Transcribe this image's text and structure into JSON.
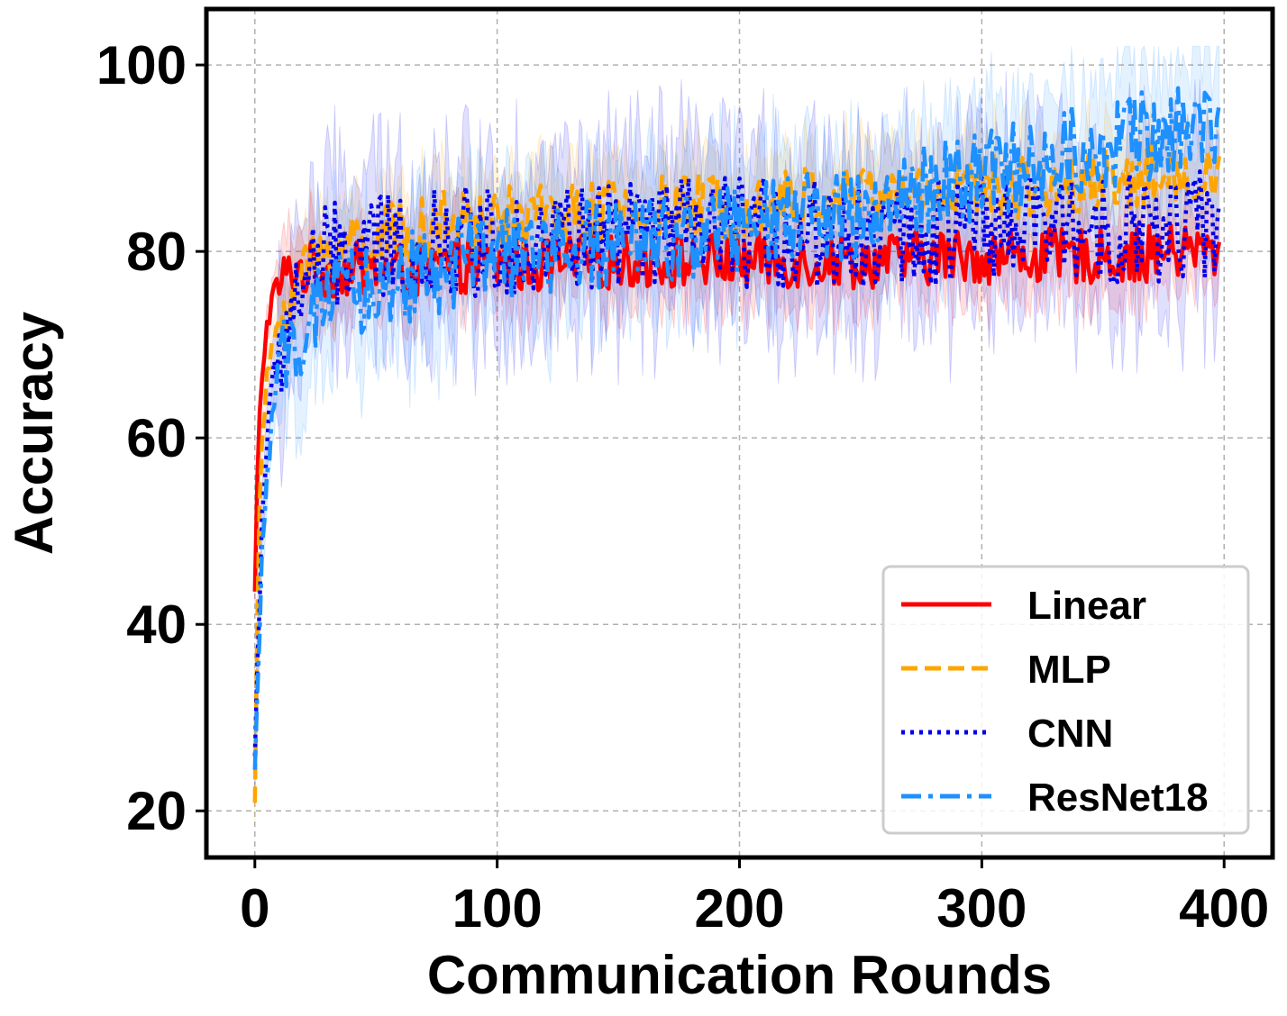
{
  "chart_data": {
    "type": "line",
    "title": "",
    "xlabel": "Communication Rounds",
    "ylabel": "Accuracy",
    "xlim": [
      -20,
      420
    ],
    "ylim": [
      15,
      106
    ],
    "xticks": [
      0,
      100,
      200,
      300,
      400
    ],
    "yticks": [
      20,
      40,
      60,
      80,
      100
    ],
    "grid": true,
    "legend_position": "lower-right",
    "rounds": 400,
    "x": [
      0,
      1,
      2,
      3,
      5,
      8,
      12,
      16,
      20,
      25,
      30,
      35,
      40,
      50,
      60,
      70,
      80,
      90,
      100,
      120,
      140,
      160,
      180,
      200,
      220,
      240,
      260,
      280,
      300,
      320,
      340,
      360,
      380,
      398
    ],
    "series": [
      {
        "name": "Linear",
        "color": "#ff0000",
        "dash": "solid",
        "mean": [
          43,
          55,
          62,
          67,
          72,
          76,
          77,
          78,
          78,
          78,
          78,
          78,
          78,
          78,
          78,
          78,
          78.5,
          78.5,
          78.5,
          78.5,
          79,
          79,
          79,
          79,
          79,
          79,
          79,
          79.5,
          79.5,
          79.5,
          79.5,
          79.5,
          80,
          80
        ],
        "spread": 3.0,
        "band_width": 4.0
      },
      {
        "name": "MLP",
        "color": "#ffa500",
        "dash": "dashed",
        "mean": [
          22,
          40,
          52,
          60,
          66,
          71,
          74,
          76,
          78,
          79,
          80,
          80.5,
          81,
          81.5,
          82,
          82.5,
          83,
          83,
          83.5,
          84,
          84,
          84.5,
          85,
          85,
          85.5,
          86,
          86,
          86.5,
          87,
          87,
          87.5,
          88,
          88,
          89
        ],
        "spread": 3.5,
        "band_width": 4.5
      },
      {
        "name": "CNN",
        "color": "#0000ee",
        "dash": "dotted",
        "mean": [
          26,
          35,
          44,
          52,
          60,
          66,
          71,
          74,
          77,
          78,
          79,
          79.5,
          80,
          80,
          80.5,
          80.5,
          81,
          81,
          81,
          81.5,
          81.5,
          82,
          82,
          82,
          82,
          82,
          82,
          82,
          82.5,
          82.5,
          82.5,
          82.5,
          82.5,
          83
        ],
        "spread": 6.0,
        "band_width": 8.0
      },
      {
        "name": "ResNet18",
        "color": "#1e90ff",
        "dash": "dashdot",
        "mean": [
          23,
          32,
          40,
          48,
          56,
          63,
          68,
          71,
          72,
          73,
          74,
          75,
          75.5,
          76,
          77,
          78,
          78.5,
          79,
          79.5,
          80,
          80.5,
          81,
          82,
          82.5,
          83,
          84,
          85,
          87,
          88,
          89.5,
          91,
          92,
          93,
          94
        ],
        "spread": 5.0,
        "band_width": 7.0
      }
    ]
  }
}
